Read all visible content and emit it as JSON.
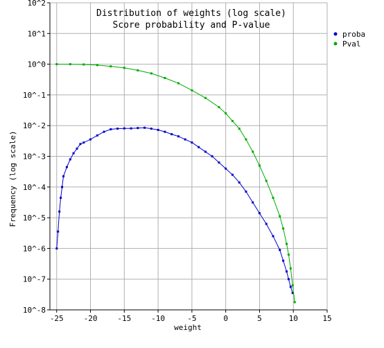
{
  "chart_data": {
    "type": "line",
    "title": "Distribution of weights  (log scale)",
    "subtitle": "Score probability and P-value",
    "xlabel": "weight",
    "ylabel": "Frequency (log scale)",
    "xlim": [
      -26,
      15
    ],
    "ylim_log10": [
      -8,
      2
    ],
    "y_scale": "log",
    "grid": true,
    "legend_position": "right",
    "x_ticks": [
      -25,
      -20,
      -15,
      -10,
      -5,
      0,
      5,
      10,
      15
    ],
    "x_tick_labels": [
      "-25",
      "-20",
      "-15",
      "-10",
      "-5",
      "0",
      "5",
      "10",
      "15"
    ],
    "y_ticks_log10": [
      -8,
      -7,
      -6,
      -5,
      -4,
      -3,
      -2,
      -1,
      0,
      1,
      2
    ],
    "y_tick_labels": [
      "10^-8",
      "10^-7",
      "10^-6",
      "10^-5",
      "10^-4",
      "10^-3",
      "10^-2",
      "10^-1",
      "10^0",
      "10^1",
      "10^2"
    ],
    "series": [
      {
        "name": "proba",
        "color": "#0000cc",
        "x": [
          -25.0,
          -24.8,
          -24.6,
          -24.4,
          -24.2,
          -24.0,
          -23.5,
          -23.0,
          -22.5,
          -22.0,
          -21.5,
          -21.0,
          -20.0,
          -19.0,
          -18.0,
          -17.0,
          -16.0,
          -15.0,
          -14.0,
          -13.0,
          -12.0,
          -11.0,
          -10.0,
          -9.0,
          -8.0,
          -7.0,
          -6.0,
          -5.0,
          -4.0,
          -3.0,
          -2.0,
          -1.0,
          0.0,
          1.0,
          2.0,
          3.0,
          4.0,
          5.0,
          6.0,
          7.0,
          8.0,
          8.5,
          9.0,
          9.3,
          9.6,
          9.9
        ],
        "log10": [
          -6.0,
          -5.45,
          -4.8,
          -4.35,
          -4.0,
          -3.65,
          -3.35,
          -3.1,
          -2.9,
          -2.75,
          -2.6,
          -2.55,
          -2.45,
          -2.32,
          -2.2,
          -2.12,
          -2.1,
          -2.09,
          -2.09,
          -2.08,
          -2.07,
          -2.1,
          -2.14,
          -2.2,
          -2.28,
          -2.35,
          -2.45,
          -2.55,
          -2.7,
          -2.85,
          -3.0,
          -3.2,
          -3.4,
          -3.6,
          -3.85,
          -4.15,
          -4.5,
          -4.85,
          -5.2,
          -5.6,
          -6.05,
          -6.4,
          -6.75,
          -7.0,
          -7.25,
          -7.45
        ]
      },
      {
        "name": "Pval",
        "color": "#00aa00",
        "x": [
          -25.0,
          -23.0,
          -21.0,
          -19.0,
          -17.0,
          -15.0,
          -13.0,
          -11.0,
          -9.0,
          -7.0,
          -5.0,
          -3.0,
          -1.0,
          0.0,
          1.0,
          2.0,
          3.0,
          4.0,
          5.0,
          6.0,
          7.0,
          8.0,
          8.5,
          9.0,
          9.3,
          9.6,
          9.9,
          10.2
        ],
        "log10": [
          0.0,
          0.0,
          -0.01,
          -0.03,
          -0.07,
          -0.12,
          -0.2,
          -0.3,
          -0.45,
          -0.62,
          -0.85,
          -1.1,
          -1.4,
          -1.6,
          -1.85,
          -2.1,
          -2.45,
          -2.85,
          -3.3,
          -3.8,
          -4.35,
          -4.95,
          -5.35,
          -5.85,
          -6.2,
          -6.65,
          -7.2,
          -7.75
        ]
      }
    ]
  }
}
